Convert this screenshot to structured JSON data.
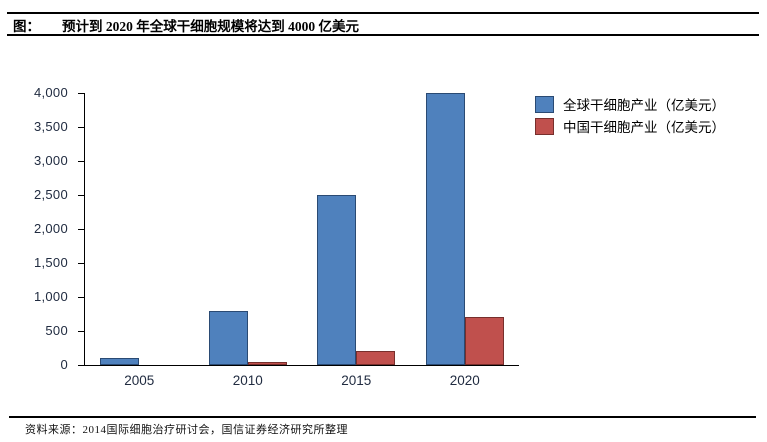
{
  "header": {
    "prefix": "图：",
    "title": "预计到 2020 年全球干细胞规模将达到 4000 亿美元"
  },
  "chart_data": {
    "type": "bar",
    "title": "预计到 2020 年全球干细胞规模将达到 4000 亿美元",
    "categories": [
      "2005",
      "2010",
      "2015",
      "2020"
    ],
    "series": [
      {
        "name": "全球干细胞产业（亿美元）",
        "values": [
          100,
          800,
          2500,
          4000
        ],
        "fill": "#4f81bd",
        "border": "#2a4a73"
      },
      {
        "name": "中国干细胞产业（亿美元）",
        "values": [
          0,
          50,
          200,
          700
        ],
        "fill": "#c0504d",
        "border": "#772f2c"
      }
    ],
    "xlabel": "",
    "ylabel": "",
    "ylim": [
      0,
      4000
    ],
    "y_tick_step": 500,
    "y_tick_labels": [
      "0",
      "500",
      "1,000",
      "1,500",
      "2,000",
      "2,500",
      "3,000",
      "3,500",
      "4,000"
    ],
    "grid": false,
    "legend_position": "right"
  },
  "footer": {
    "source": "资料来源：2014国际细胞治疗研讨会，国信证券经济研究所整理"
  },
  "colors": {
    "axis_text": "#212c41",
    "rule": "#000000",
    "background": "#ffffff"
  }
}
